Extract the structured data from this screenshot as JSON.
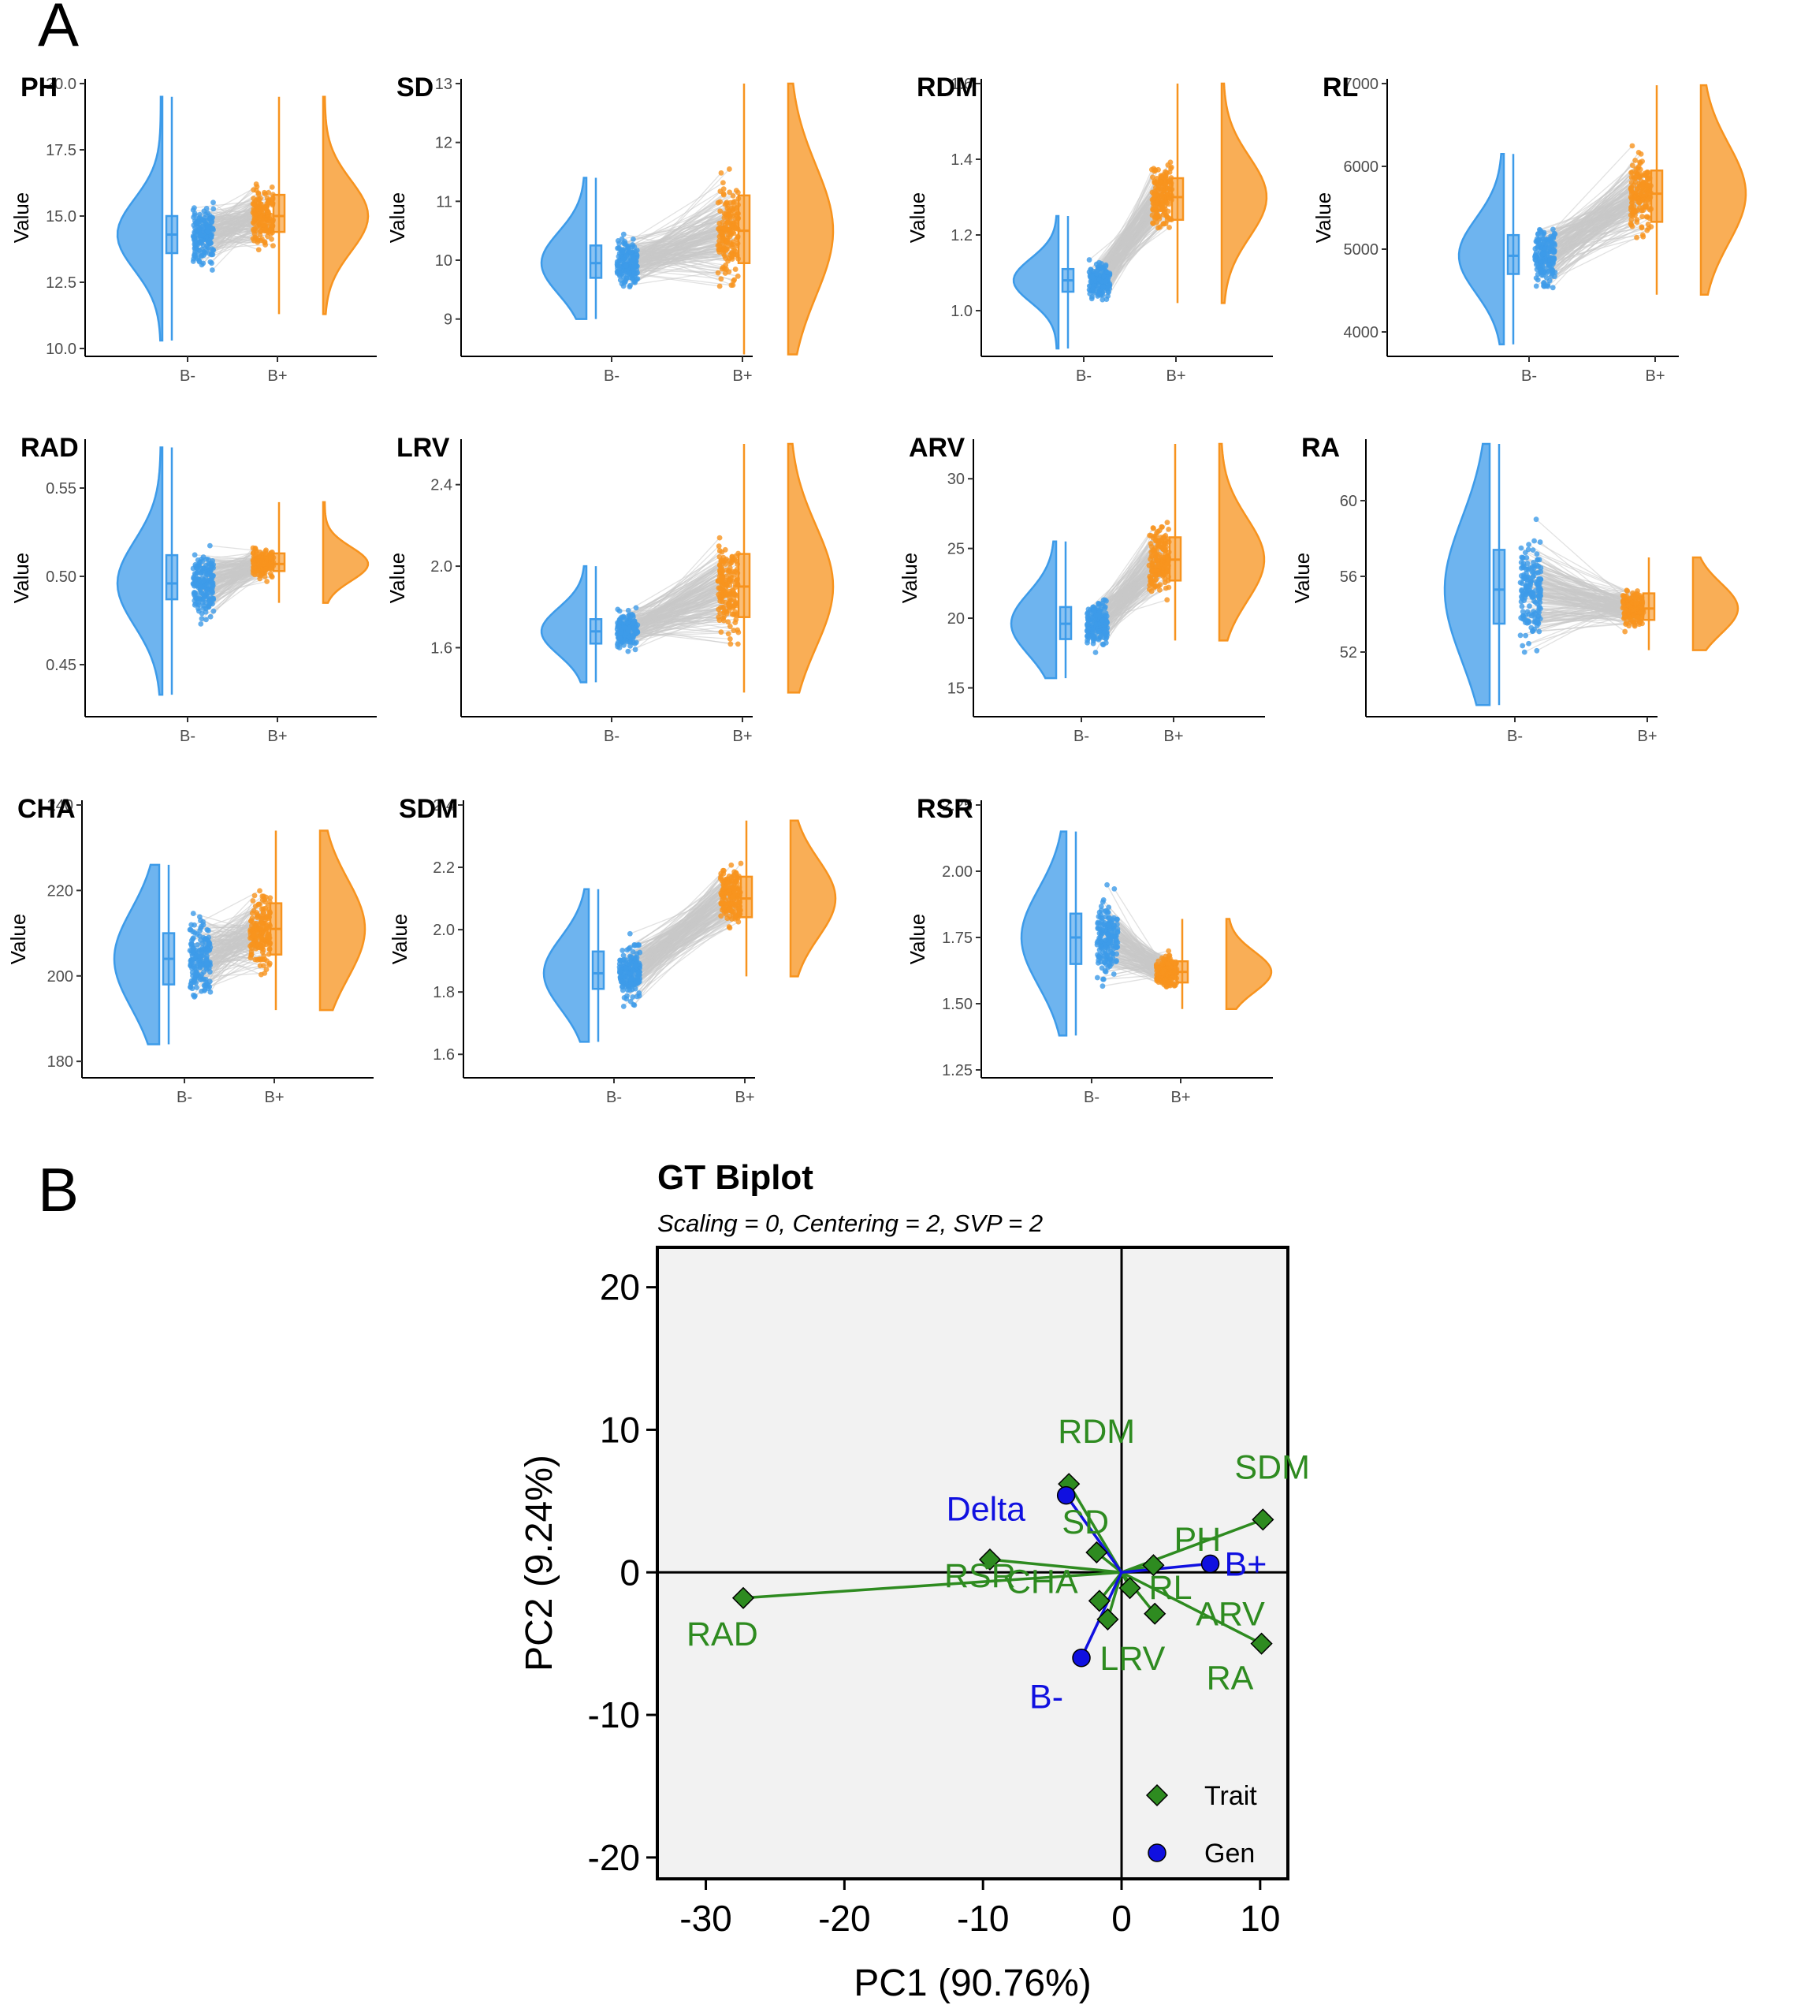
{
  "panel_labels": [
    "A",
    "B"
  ],
  "colors": {
    "bminus": "#3d9be9",
    "bplus": "#f7931e",
    "lines": "#c8c8c8",
    "trait": "#2e8b20",
    "gen": "#1010e0",
    "biplot_bg": "#f2f2f2"
  },
  "chart_data": [
    {
      "type": "raincloud",
      "title": "PH",
      "ylabel": "Value",
      "categories": [
        "B-",
        "B+"
      ],
      "ylim": [
        10.0,
        20.0
      ],
      "yticks": [
        10.0,
        12.5,
        15.0,
        17.5,
        20.0
      ],
      "ytick_labels": [
        "10.0",
        "12.5",
        "15.0",
        "17.5",
        "20.0"
      ],
      "series": [
        {
          "name": "B-",
          "q1": 13.6,
          "median": 14.3,
          "q3": 15.0,
          "min": 10.3,
          "max": 19.5
        },
        {
          "name": "B+",
          "q1": 14.4,
          "median": 15.0,
          "q3": 15.8,
          "min": 11.3,
          "max": 19.5
        }
      ]
    },
    {
      "type": "raincloud",
      "title": "SD",
      "ylabel": "Value",
      "categories": [
        "B-",
        "B+"
      ],
      "ylim": [
        8.5,
        13.0
      ],
      "yticks": [
        9,
        10,
        11,
        12,
        13
      ],
      "ytick_labels": [
        "9",
        "10",
        "11",
        "12",
        "13"
      ],
      "series": [
        {
          "name": "B-",
          "q1": 9.7,
          "median": 9.95,
          "q3": 10.25,
          "min": 9.0,
          "max": 11.4
        },
        {
          "name": "B+",
          "q1": 9.95,
          "median": 10.5,
          "q3": 11.1,
          "min": 8.4,
          "max": 13.0
        }
      ]
    },
    {
      "type": "raincloud",
      "title": "RDM",
      "ylabel": "Value",
      "categories": [
        "B-",
        "B+"
      ],
      "ylim": [
        0.9,
        1.6
      ],
      "yticks": [
        1.0,
        1.2,
        1.4,
        1.6
      ],
      "ytick_labels": [
        "1.0",
        "1.2",
        "1.4",
        "1.6"
      ],
      "series": [
        {
          "name": "B-",
          "q1": 1.05,
          "median": 1.08,
          "q3": 1.11,
          "min": 0.9,
          "max": 1.25
        },
        {
          "name": "B+",
          "q1": 1.24,
          "median": 1.3,
          "q3": 1.35,
          "min": 1.02,
          "max": 1.6
        }
      ]
    },
    {
      "type": "raincloud",
      "title": "RL",
      "ylabel": "Value",
      "categories": [
        "B-",
        "B+"
      ],
      "ylim": [
        3800,
        7000
      ],
      "yticks": [
        4000,
        5000,
        6000,
        7000
      ],
      "ytick_labels": [
        "4000",
        "5000",
        "6000",
        "7000"
      ],
      "series": [
        {
          "name": "B-",
          "q1": 4700,
          "median": 4920,
          "q3": 5170,
          "min": 3850,
          "max": 6150
        },
        {
          "name": "B+",
          "q1": 5330,
          "median": 5670,
          "q3": 5950,
          "min": 4450,
          "max": 6980
        }
      ]
    },
    {
      "type": "raincloud",
      "title": "RAD",
      "ylabel": "Value",
      "categories": [
        "B-",
        "B+"
      ],
      "ylim": [
        0.425,
        0.575
      ],
      "yticks": [
        0.45,
        0.5,
        0.55
      ],
      "ytick_labels": [
        "0.45",
        "0.50",
        "0.55"
      ],
      "series": [
        {
          "name": "B-",
          "q1": 0.487,
          "median": 0.496,
          "q3": 0.512,
          "min": 0.433,
          "max": 0.573
        },
        {
          "name": "B+",
          "q1": 0.503,
          "median": 0.507,
          "q3": 0.513,
          "min": 0.485,
          "max": 0.542
        }
      ]
    },
    {
      "type": "raincloud",
      "title": "LRV",
      "ylabel": "Value",
      "categories": [
        "B-",
        "B+"
      ],
      "ylim": [
        1.3,
        2.6
      ],
      "yticks": [
        1.6,
        2.0,
        2.4
      ],
      "ytick_labels": [
        "1.6",
        "2.0",
        "2.4"
      ],
      "series": [
        {
          "name": "B-",
          "q1": 1.62,
          "median": 1.68,
          "q3": 1.74,
          "min": 1.43,
          "max": 2.0
        },
        {
          "name": "B+",
          "q1": 1.75,
          "median": 1.9,
          "q3": 2.06,
          "min": 1.38,
          "max": 2.6
        }
      ]
    },
    {
      "type": "raincloud",
      "title": "ARV",
      "ylabel": "Value",
      "categories": [
        "B-",
        "B+"
      ],
      "ylim": [
        13.5,
        32.5
      ],
      "yticks": [
        15,
        20,
        25,
        30
      ],
      "ytick_labels": [
        "15",
        "20",
        "25",
        "30"
      ],
      "series": [
        {
          "name": "B-",
          "q1": 18.5,
          "median": 19.6,
          "q3": 20.8,
          "min": 15.7,
          "max": 25.5
        },
        {
          "name": "B+",
          "q1": 22.7,
          "median": 24.2,
          "q3": 25.8,
          "min": 18.4,
          "max": 32.5
        }
      ]
    },
    {
      "type": "raincloud",
      "title": "RA",
      "ylabel": "Value",
      "categories": [
        "B-",
        "B+"
      ],
      "ylim": [
        49,
        63
      ],
      "yticks": [
        52,
        56,
        60
      ],
      "ytick_labels": [
        "52",
        "56",
        "60"
      ],
      "series": [
        {
          "name": "B-",
          "q1": 53.5,
          "median": 55.3,
          "q3": 57.4,
          "min": 49.2,
          "max": 63.0
        },
        {
          "name": "B+",
          "q1": 53.7,
          "median": 54.3,
          "q3": 55.1,
          "min": 52.1,
          "max": 57.0
        }
      ]
    },
    {
      "type": "raincloud",
      "title": "CHA",
      "ylabel": "Value",
      "categories": [
        "B-",
        "B+"
      ],
      "ylim": [
        178,
        240
      ],
      "yticks": [
        180,
        200,
        220,
        240
      ],
      "ytick_labels": [
        "180",
        "200",
        "220",
        "240"
      ],
      "series": [
        {
          "name": "B-",
          "q1": 198,
          "median": 204,
          "q3": 210,
          "min": 184,
          "max": 226
        },
        {
          "name": "B+",
          "q1": 205,
          "median": 211,
          "q3": 217,
          "min": 192,
          "max": 234
        }
      ]
    },
    {
      "type": "raincloud",
      "title": "SDM",
      "ylabel": "Value",
      "categories": [
        "B-",
        "B+"
      ],
      "ylim": [
        1.55,
        2.4
      ],
      "yticks": [
        1.6,
        1.8,
        2.0,
        2.2,
        2.4
      ],
      "ytick_labels": [
        "1.6",
        "1.8",
        "2.0",
        "2.2",
        "2.4"
      ],
      "series": [
        {
          "name": "B-",
          "q1": 1.81,
          "median": 1.86,
          "q3": 1.93,
          "min": 1.64,
          "max": 2.13
        },
        {
          "name": "B+",
          "q1": 2.04,
          "median": 2.1,
          "q3": 2.17,
          "min": 1.85,
          "max": 2.35
        }
      ]
    },
    {
      "type": "raincloud",
      "title": "RSR",
      "ylabel": "Value",
      "categories": [
        "B-",
        "B+"
      ],
      "ylim": [
        1.25,
        2.25
      ],
      "yticks": [
        1.25,
        1.5,
        1.75,
        2.0,
        2.25
      ],
      "ytick_labels": [
        "1.25",
        "1.50",
        "1.75",
        "2.00",
        "2.25"
      ],
      "series": [
        {
          "name": "B-",
          "q1": 1.65,
          "median": 1.75,
          "q3": 1.84,
          "min": 1.38,
          "max": 2.15
        },
        {
          "name": "B+",
          "q1": 1.58,
          "median": 1.62,
          "q3": 1.66,
          "min": 1.48,
          "max": 1.82
        }
      ]
    },
    {
      "type": "scatter",
      "title": "GT Biplot",
      "subtitle": "Scaling = 0, Centering = 2, SVP = 2",
      "xlabel": "PC1 (90.76%)",
      "ylabel": "PC2 (9.24%)",
      "xlim": [
        -33.5,
        12.0
      ],
      "ylim": [
        -21.5,
        22.8
      ],
      "xticks": [
        -30,
        -20,
        -10,
        0,
        10
      ],
      "xtick_labels": [
        "-30",
        "-20",
        "-10",
        "0",
        "10"
      ],
      "yticks": [
        -20,
        -10,
        0,
        10,
        20
      ],
      "ytick_labels": [
        "-20",
        "-10",
        "0",
        "10",
        "20"
      ],
      "legend": {
        "position": "bottom-right",
        "entries": [
          "Trait",
          "Gen"
        ]
      },
      "series": [
        {
          "name": "Trait",
          "points": [
            {
              "label": "RDM",
              "x": -3.8,
              "y": 6.2
            },
            {
              "label": "SDM",
              "x": 10.2,
              "y": 3.7
            },
            {
              "label": "SD",
              "x": -1.8,
              "y": 1.4
            },
            {
              "label": "PH",
              "x": 2.3,
              "y": 0.5
            },
            {
              "label": "RSR",
              "x": -9.5,
              "y": 0.9
            },
            {
              "label": "CHA",
              "x": -1.6,
              "y": -2.0
            },
            {
              "label": "RL",
              "x": 0.6,
              "y": -1.1
            },
            {
              "label": "ARV",
              "x": 2.4,
              "y": -2.9
            },
            {
              "label": "RA",
              "x": 10.1,
              "y": -5.0
            },
            {
              "label": "LRV",
              "x": -1.0,
              "y": -3.3
            },
            {
              "label": "RAD",
              "x": -27.3,
              "y": -1.8
            }
          ]
        },
        {
          "name": "Gen",
          "points": [
            {
              "label": "Delta",
              "x": -4.0,
              "y": 5.4
            },
            {
              "label": "B+",
              "x": 6.4,
              "y": 0.6
            },
            {
              "label": "B-",
              "x": -2.9,
              "y": -6.0
            }
          ]
        }
      ]
    }
  ]
}
